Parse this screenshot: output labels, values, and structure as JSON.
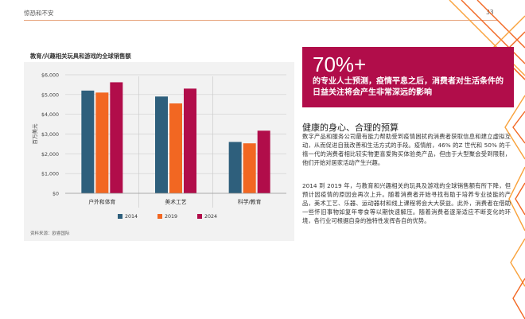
{
  "header": {
    "section": "惊恐和不安",
    "page_number": "33"
  },
  "chart_data": {
    "type": "bar",
    "title": "教育/兴趣相关玩具和游戏的全球销售额",
    "ylabel": "百万美元",
    "xlabel": "",
    "categories": [
      "户外和体育",
      "美术工艺",
      "科学/教育"
    ],
    "ylim": [
      0,
      6000
    ],
    "ytick_labels": [
      "$6,000",
      "$5,000",
      "$4,000",
      "$3,000",
      "$2,000",
      "$1,000",
      "$0"
    ],
    "series": [
      {
        "name": "2014",
        "color": "#2e5f7c",
        "values": [
          5200,
          4900,
          2600
        ]
      },
      {
        "name": "2019",
        "color": "#f26722",
        "values": [
          5100,
          4550,
          2530
        ]
      },
      {
        "name": "2024",
        "color": "#b10d4a",
        "values": [
          5620,
          5300,
          3170
        ]
      }
    ],
    "legend_position": "bottom-center",
    "grid": true
  },
  "source": "资料来源：欧睿国际",
  "callout": {
    "big_number": "70%+",
    "text": "的专业人士预测，疫情平息之后，消费者对生活条件的日益关注将会产生非常深远的影响"
  },
  "article": {
    "heading": "健康的身心、合理的预算",
    "paragraph1": "数字产品和服务公司最有能力帮助受到疫情困扰的消费者获取信息和建立虚拟互动，从而促进自我改善和生活方式的手段。疫情前，46% 的Z 世代和 50% 的千禧一代的消费者相比较实物更喜爱购买体验类产品，但由于大型聚会受到限制，他们开始对居家活动产生兴趣。",
    "paragraph2": "2014 到 2019 年，与教育和兴趣相关的玩具及游戏的全球销售额有所下降，但预计因疫情的原因会再次上升。随着消费者开始寻找有助于培养专业技能的产品，美术工艺、乐器、运动器材和线上课程将会大大获益。此外，消费者在借助一些怀旧事物如复年零食等以期快速解压。随着消费者逐渐适应不断变化的环境，各行业可根据自身的独特性发挥各自的优势。"
  },
  "colors": {
    "accent_crimson": "#b10d4a",
    "accent_orange": "#f26722",
    "accent_teal": "#2e5f7c"
  }
}
